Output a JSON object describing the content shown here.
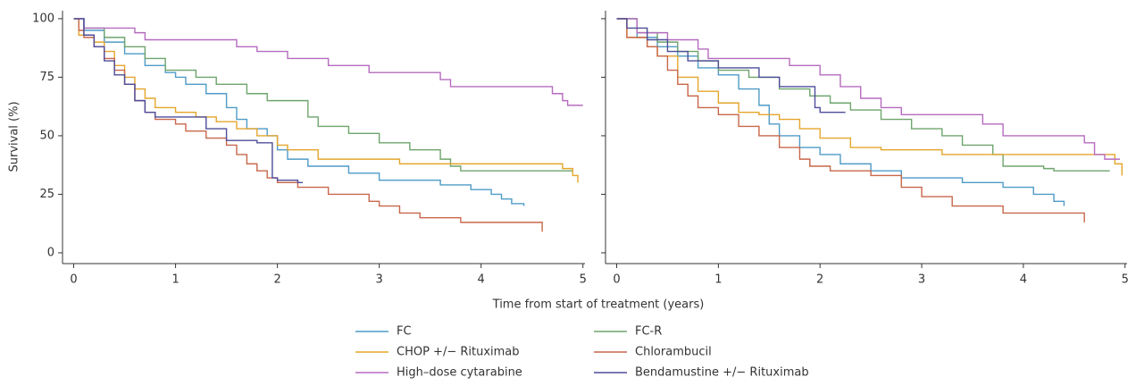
{
  "chart_data": [
    {
      "type": "line",
      "step": true,
      "ylabel": "Survival (%)",
      "xlabel": "Time from start of treatment (years)",
      "xlim": [
        -0.11,
        5.02
      ],
      "ylim": [
        -4.6,
        103.4
      ],
      "xticks": [
        0,
        1,
        2,
        3,
        4,
        5
      ],
      "yticks": [
        0,
        25,
        50,
        75,
        100
      ],
      "show_ytick_labels": true,
      "series": [
        {
          "name": "FC",
          "color": "#4f9bc8",
          "x": [
            0,
            0.1,
            0.3,
            0.5,
            0.7,
            0.9,
            1.0,
            1.1,
            1.3,
            1.5,
            1.6,
            1.7,
            1.9,
            2.0,
            2.1,
            2.3,
            2.7,
            3.0,
            3.6,
            3.9,
            4.1,
            4.2,
            4.3,
            4.42
          ],
          "values": [
            100,
            95,
            90,
            85,
            80,
            77,
            75,
            72,
            68,
            62,
            57,
            53,
            50,
            44,
            40,
            37,
            34,
            31,
            29,
            27,
            25,
            23,
            21,
            20
          ]
        },
        {
          "name": "FC-R",
          "color": "#6ea56c",
          "x": [
            0,
            0.1,
            0.3,
            0.5,
            0.7,
            0.9,
            1.2,
            1.4,
            1.7,
            1.9,
            2.3,
            2.4,
            2.7,
            3.0,
            3.3,
            3.6,
            3.7,
            3.8,
            4.9
          ],
          "values": [
            100,
            96,
            92,
            88,
            83,
            78,
            75,
            72,
            68,
            65,
            58,
            54,
            51,
            47,
            44,
            40,
            37,
            35,
            35
          ]
        },
        {
          "name": "CHOP +/− Rituximab",
          "color": "#e5a52c",
          "x": [
            0,
            0.05,
            0.2,
            0.3,
            0.4,
            0.5,
            0.6,
            0.7,
            0.8,
            1.0,
            1.2,
            1.4,
            1.6,
            1.8,
            2.0,
            2.1,
            2.4,
            3.2,
            4.8,
            4.9,
            4.95
          ],
          "values": [
            100,
            93,
            90,
            86,
            80,
            75,
            70,
            66,
            62,
            60,
            58,
            56,
            53,
            50,
            46,
            44,
            40,
            38,
            36,
            33,
            30
          ]
        },
        {
          "name": "Chlorambucil",
          "color": "#c8674a",
          "x": [
            0,
            0.05,
            0.1,
            0.2,
            0.3,
            0.4,
            0.5,
            0.6,
            0.7,
            0.8,
            1.0,
            1.1,
            1.3,
            1.5,
            1.6,
            1.7,
            1.8,
            1.9,
            2.0,
            2.2,
            2.5,
            2.9,
            3.0,
            3.2,
            3.4,
            3.8,
            4.6
          ],
          "values": [
            100,
            95,
            92,
            88,
            83,
            78,
            72,
            65,
            60,
            57,
            55,
            52,
            49,
            46,
            42,
            38,
            35,
            32,
            30,
            28,
            25,
            22,
            20,
            17,
            15,
            13,
            9
          ]
        },
        {
          "name": "High–dose cytarabine",
          "color": "#b56bbf",
          "x": [
            0,
            0.1,
            0.6,
            0.7,
            1.6,
            1.8,
            2.1,
            2.5,
            2.9,
            3.6,
            3.7,
            4.7,
            4.8,
            4.85,
            5.0
          ],
          "values": [
            100,
            96,
            94,
            91,
            88,
            86,
            83,
            80,
            77,
            74,
            71,
            68,
            65,
            63,
            63
          ]
        },
        {
          "name": "Bendamustine +/− Rituximab",
          "color": "#4d4d9a",
          "x": [
            0,
            0.1,
            0.2,
            0.3,
            0.4,
            0.5,
            0.6,
            0.7,
            0.8,
            1.3,
            1.5,
            1.8,
            1.95,
            2.0,
            2.2,
            2.25
          ],
          "values": [
            100,
            93,
            88,
            82,
            76,
            72,
            65,
            60,
            58,
            53,
            48,
            47,
            32,
            31,
            30,
            30
          ]
        }
      ]
    },
    {
      "type": "line",
      "step": true,
      "xlim": [
        -0.11,
        5.02
      ],
      "ylim": [
        -4.6,
        103.4
      ],
      "xticks": [
        0,
        1,
        2,
        3,
        4,
        5
      ],
      "yticks": [
        0,
        25,
        50,
        75,
        100
      ],
      "show_ytick_labels": false,
      "series": [
        {
          "name": "FC",
          "color": "#4f9bc8",
          "x": [
            0,
            0.2,
            0.4,
            0.6,
            0.8,
            1.0,
            1.2,
            1.4,
            1.5,
            1.6,
            1.8,
            2.0,
            2.2,
            2.5,
            2.8,
            3.4,
            3.8,
            4.1,
            4.3,
            4.4
          ],
          "values": [
            100,
            92,
            88,
            84,
            79,
            76,
            70,
            63,
            55,
            50,
            45,
            42,
            38,
            35,
            32,
            30,
            28,
            25,
            22,
            20
          ]
        },
        {
          "name": "FC-R",
          "color": "#6ea56c",
          "x": [
            0,
            0.2,
            0.4,
            0.6,
            0.8,
            1.0,
            1.3,
            1.6,
            1.9,
            2.1,
            2.3,
            2.6,
            2.9,
            3.2,
            3.4,
            3.7,
            3.8,
            4.2,
            4.3,
            4.85
          ],
          "values": [
            100,
            94,
            90,
            86,
            82,
            78,
            75,
            70,
            67,
            64,
            61,
            57,
            53,
            50,
            46,
            42,
            37,
            36,
            35,
            35
          ]
        },
        {
          "name": "CHOP +/− Rituximab",
          "color": "#e5a52c",
          "x": [
            0,
            0.1,
            0.3,
            0.4,
            0.6,
            0.8,
            1.0,
            1.2,
            1.4,
            1.6,
            1.8,
            2.0,
            2.3,
            2.6,
            3.2,
            4.9,
            4.97
          ],
          "values": [
            100,
            92,
            88,
            84,
            75,
            69,
            64,
            60,
            59,
            57,
            53,
            49,
            45,
            44,
            42,
            38,
            33
          ]
        },
        {
          "name": "Chlorambucil",
          "color": "#c8674a",
          "x": [
            0,
            0.1,
            0.3,
            0.4,
            0.5,
            0.6,
            0.7,
            0.8,
            1.0,
            1.2,
            1.4,
            1.6,
            1.8,
            1.9,
            2.1,
            2.5,
            2.8,
            3.0,
            3.3,
            3.8,
            4.6
          ],
          "values": [
            100,
            92,
            88,
            84,
            78,
            72,
            67,
            62,
            59,
            54,
            50,
            45,
            40,
            37,
            35,
            33,
            28,
            24,
            20,
            17,
            13
          ]
        },
        {
          "name": "High–dose cytarabine",
          "color": "#b56bbf",
          "x": [
            0,
            0.2,
            0.5,
            0.8,
            0.9,
            1.7,
            2.0,
            2.2,
            2.4,
            2.6,
            2.8,
            3.6,
            3.8,
            4.6,
            4.7,
            4.8,
            4.95
          ],
          "values": [
            100,
            94,
            91,
            87,
            83,
            80,
            76,
            71,
            66,
            62,
            59,
            55,
            50,
            47,
            42,
            40,
            40
          ]
        },
        {
          "name": "Bendamustine +/− Rituximab",
          "color": "#4d4d9a",
          "x": [
            0,
            0.1,
            0.3,
            0.5,
            0.7,
            1.0,
            1.4,
            1.6,
            1.95,
            2.0,
            2.25
          ],
          "values": [
            100,
            96,
            91,
            86,
            82,
            79,
            75,
            71,
            62,
            60,
            60
          ]
        }
      ]
    }
  ]
}
